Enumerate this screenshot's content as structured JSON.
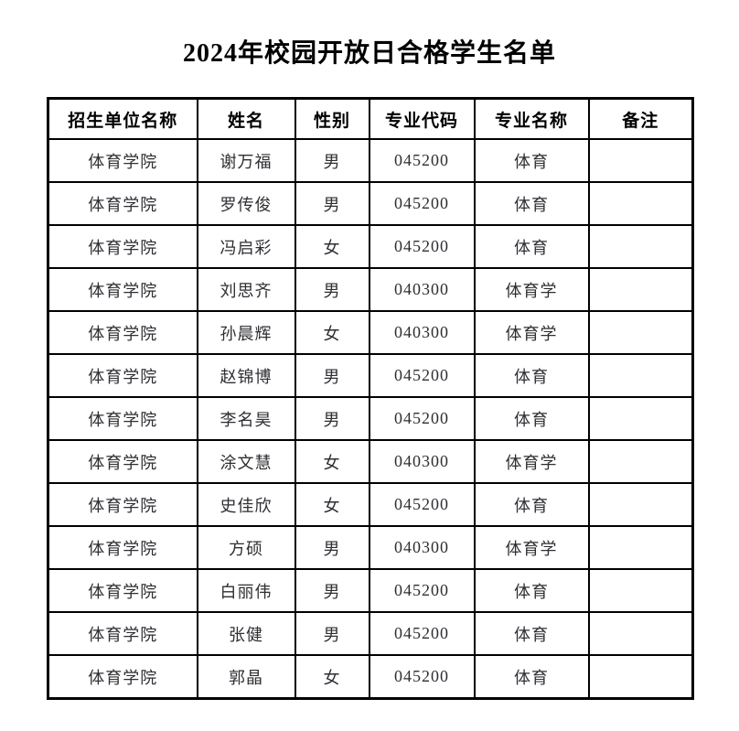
{
  "page": {
    "title": "2024年校园开放日合格学生名单"
  },
  "table": {
    "headers": [
      "招生单位名称",
      "姓名",
      "性别",
      "专业代码",
      "专业名称",
      "备注"
    ],
    "column_keys": [
      "unit",
      "name",
      "gender",
      "major-code",
      "major-name",
      "remark"
    ],
    "rows": [
      [
        "体育学院",
        "谢万福",
        "男",
        "045200",
        "体育",
        ""
      ],
      [
        "体育学院",
        "罗传俊",
        "男",
        "045200",
        "体育",
        ""
      ],
      [
        "体育学院",
        "冯启彩",
        "女",
        "045200",
        "体育",
        ""
      ],
      [
        "体育学院",
        "刘思齐",
        "男",
        "040300",
        "体育学",
        ""
      ],
      [
        "体育学院",
        "孙晨辉",
        "女",
        "040300",
        "体育学",
        ""
      ],
      [
        "体育学院",
        "赵锦博",
        "男",
        "045200",
        "体育",
        ""
      ],
      [
        "体育学院",
        "李名昊",
        "男",
        "045200",
        "体育",
        ""
      ],
      [
        "体育学院",
        "涂文慧",
        "女",
        "040300",
        "体育学",
        ""
      ],
      [
        "体育学院",
        "史佳欣",
        "女",
        "045200",
        "体育",
        ""
      ],
      [
        "体育学院",
        "方硕",
        "男",
        "040300",
        "体育学",
        ""
      ],
      [
        "体育学院",
        "白丽伟",
        "男",
        "045200",
        "体育",
        ""
      ],
      [
        "体育学院",
        "张健",
        "男",
        "045200",
        "体育",
        ""
      ],
      [
        "体育学院",
        "郭晶",
        "女",
        "045200",
        "体育",
        ""
      ]
    ]
  },
  "colors": {
    "border": "#000000",
    "heading_text": "#000000",
    "body_text": "#2e2e33",
    "background": "#ffffff"
  }
}
